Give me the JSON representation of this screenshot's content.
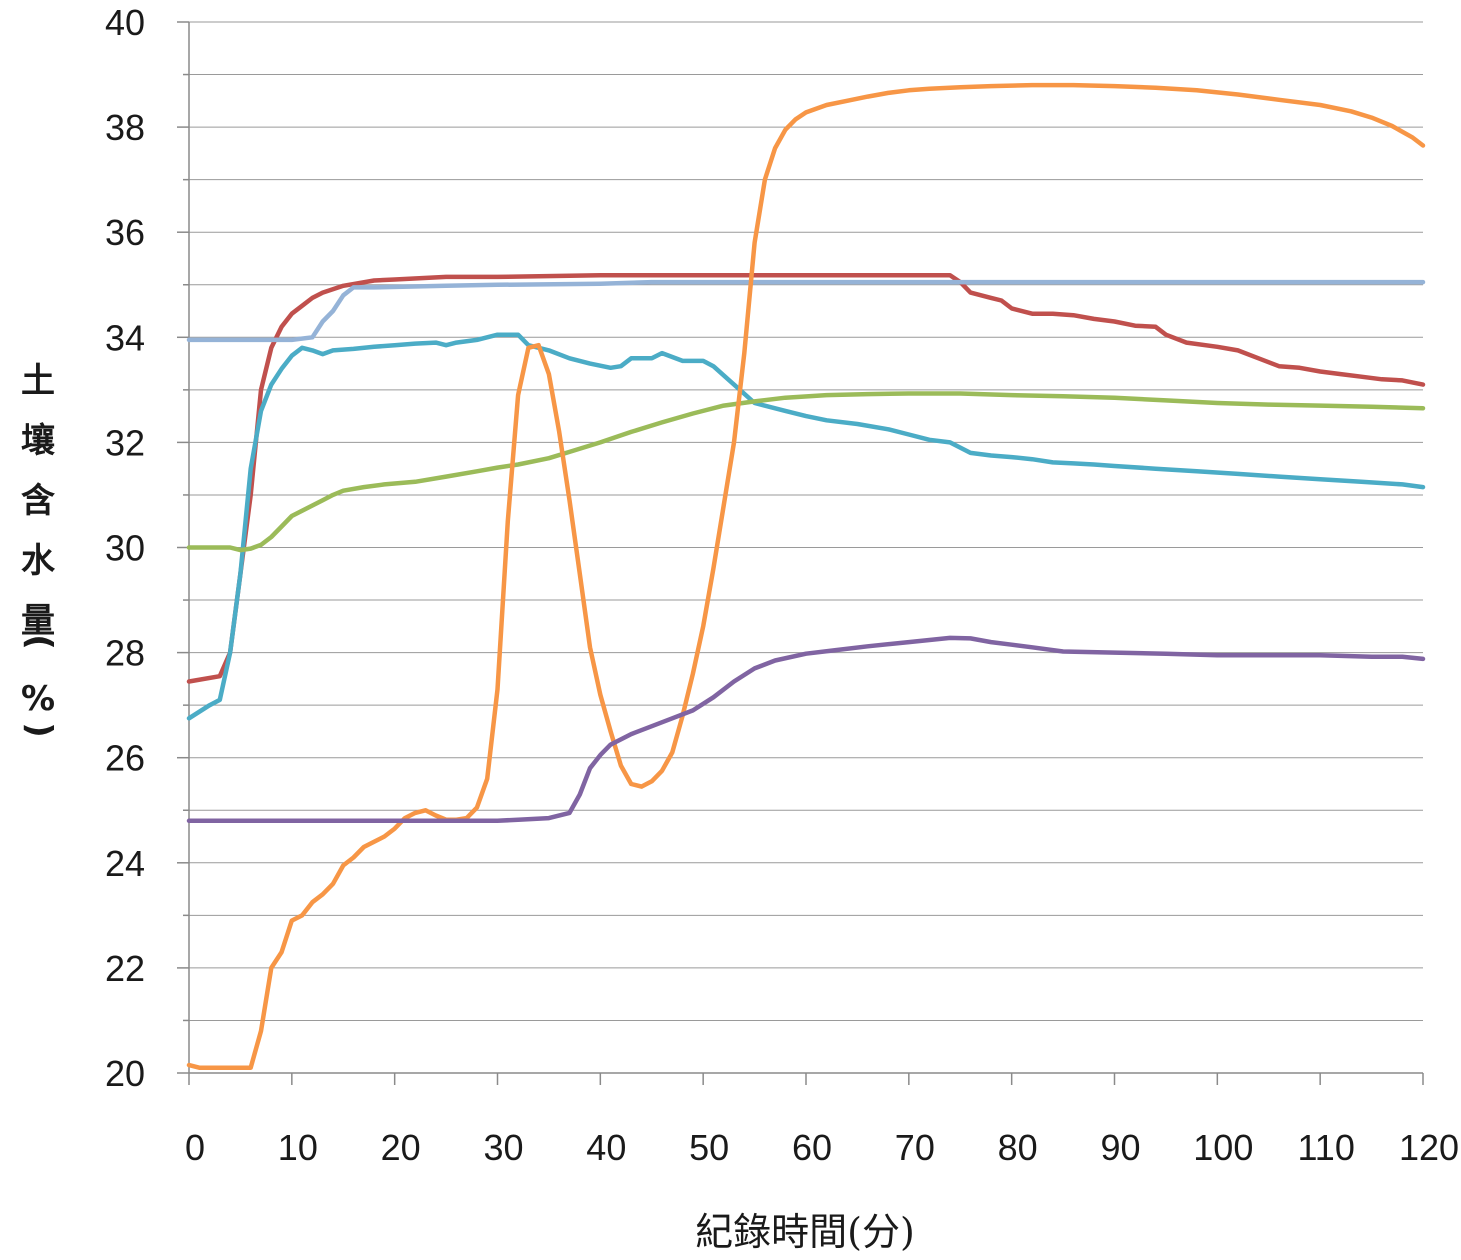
{
  "chart_data": {
    "type": "line",
    "title": "",
    "xlabel": "紀錄時間(分)",
    "ylabel": "土壤含水量(%)",
    "xlim": [
      0,
      120
    ],
    "ylim": [
      20,
      40
    ],
    "xticks": [
      0,
      10,
      20,
      30,
      40,
      50,
      60,
      70,
      80,
      90,
      100,
      110,
      120
    ],
    "yticks": [
      20,
      22,
      24,
      26,
      28,
      30,
      32,
      34,
      36,
      38,
      40
    ],
    "grid": true,
    "series": [
      {
        "color": "#c0504d",
        "points": [
          [
            0,
            27.45
          ],
          [
            3,
            27.55
          ],
          [
            4,
            28.0
          ],
          [
            5,
            29.5
          ],
          [
            6,
            31.0
          ],
          [
            7,
            33.0
          ],
          [
            8,
            33.8
          ],
          [
            9,
            34.2
          ],
          [
            10,
            34.45
          ],
          [
            11,
            34.6
          ],
          [
            12,
            34.75
          ],
          [
            13,
            34.85
          ],
          [
            15,
            34.98
          ],
          [
            18,
            35.08
          ],
          [
            20,
            35.1
          ],
          [
            25,
            35.15
          ],
          [
            30,
            35.15
          ],
          [
            40,
            35.18
          ],
          [
            50,
            35.18
          ],
          [
            60,
            35.18
          ],
          [
            70,
            35.18
          ],
          [
            74,
            35.18
          ],
          [
            75,
            35.05
          ],
          [
            76,
            34.85
          ],
          [
            78,
            34.75
          ],
          [
            79,
            34.7
          ],
          [
            80,
            34.55
          ],
          [
            82,
            34.45
          ],
          [
            84,
            34.45
          ],
          [
            86,
            34.42
          ],
          [
            88,
            34.35
          ],
          [
            90,
            34.3
          ],
          [
            92,
            34.22
          ],
          [
            94,
            34.2
          ],
          [
            95,
            34.05
          ],
          [
            97,
            33.9
          ],
          [
            100,
            33.82
          ],
          [
            102,
            33.75
          ],
          [
            104,
            33.6
          ],
          [
            106,
            33.45
          ],
          [
            108,
            33.42
          ],
          [
            110,
            33.35
          ],
          [
            112,
            33.3
          ],
          [
            114,
            33.25
          ],
          [
            116,
            33.2
          ],
          [
            118,
            33.18
          ],
          [
            120,
            33.1
          ]
        ]
      },
      {
        "color": "#95b3d7",
        "points": [
          [
            0,
            33.95
          ],
          [
            10,
            33.95
          ],
          [
            12,
            34.0
          ],
          [
            13,
            34.3
          ],
          [
            14,
            34.5
          ],
          [
            15,
            34.8
          ],
          [
            16,
            34.95
          ],
          [
            18,
            34.95
          ],
          [
            25,
            34.98
          ],
          [
            30,
            35.0
          ],
          [
            40,
            35.02
          ],
          [
            45,
            35.05
          ],
          [
            50,
            35.05
          ],
          [
            60,
            35.05
          ],
          [
            80,
            35.05
          ],
          [
            100,
            35.05
          ],
          [
            120,
            35.05
          ]
        ]
      },
      {
        "color": "#4bacc6",
        "points": [
          [
            0,
            26.75
          ],
          [
            2,
            27.0
          ],
          [
            3,
            27.1
          ],
          [
            4,
            28.0
          ],
          [
            5,
            29.5
          ],
          [
            6,
            31.5
          ],
          [
            7,
            32.6
          ],
          [
            8,
            33.1
          ],
          [
            9,
            33.4
          ],
          [
            10,
            33.65
          ],
          [
            11,
            33.8
          ],
          [
            12,
            33.75
          ],
          [
            13,
            33.68
          ],
          [
            14,
            33.75
          ],
          [
            16,
            33.78
          ],
          [
            18,
            33.82
          ],
          [
            20,
            33.85
          ],
          [
            22,
            33.88
          ],
          [
            24,
            33.9
          ],
          [
            25,
            33.85
          ],
          [
            26,
            33.9
          ],
          [
            28,
            33.95
          ],
          [
            30,
            34.05
          ],
          [
            32,
            34.05
          ],
          [
            33,
            33.85
          ],
          [
            35,
            33.75
          ],
          [
            37,
            33.6
          ],
          [
            39,
            33.5
          ],
          [
            41,
            33.42
          ],
          [
            42,
            33.45
          ],
          [
            43,
            33.6
          ],
          [
            45,
            33.6
          ],
          [
            46,
            33.7
          ],
          [
            48,
            33.55
          ],
          [
            50,
            33.55
          ],
          [
            51,
            33.45
          ],
          [
            53,
            33.1
          ],
          [
            55,
            32.75
          ],
          [
            58,
            32.6
          ],
          [
            60,
            32.5
          ],
          [
            62,
            32.42
          ],
          [
            65,
            32.35
          ],
          [
            68,
            32.25
          ],
          [
            70,
            32.15
          ],
          [
            72,
            32.05
          ],
          [
            74,
            32.0
          ],
          [
            76,
            31.8
          ],
          [
            78,
            31.75
          ],
          [
            80,
            31.72
          ],
          [
            82,
            31.68
          ],
          [
            84,
            31.62
          ],
          [
            86,
            31.6
          ],
          [
            88,
            31.58
          ],
          [
            90,
            31.55
          ],
          [
            94,
            31.5
          ],
          [
            98,
            31.45
          ],
          [
            102,
            31.4
          ],
          [
            106,
            31.35
          ],
          [
            110,
            31.3
          ],
          [
            114,
            31.25
          ],
          [
            118,
            31.2
          ],
          [
            120,
            31.15
          ]
        ]
      },
      {
        "color": "#9bbb59",
        "points": [
          [
            0,
            30.0
          ],
          [
            4,
            30.0
          ],
          [
            5,
            29.95
          ],
          [
            6,
            29.98
          ],
          [
            7,
            30.05
          ],
          [
            8,
            30.2
          ],
          [
            9,
            30.4
          ],
          [
            10,
            30.6
          ],
          [
            11,
            30.7
          ],
          [
            12,
            30.8
          ],
          [
            13,
            30.9
          ],
          [
            14,
            31.0
          ],
          [
            15,
            31.08
          ],
          [
            17,
            31.15
          ],
          [
            19,
            31.2
          ],
          [
            22,
            31.25
          ],
          [
            25,
            31.35
          ],
          [
            28,
            31.45
          ],
          [
            30,
            31.52
          ],
          [
            32,
            31.58
          ],
          [
            35,
            31.7
          ],
          [
            37,
            31.82
          ],
          [
            40,
            32.0
          ],
          [
            43,
            32.2
          ],
          [
            46,
            32.38
          ],
          [
            49,
            32.55
          ],
          [
            52,
            32.7
          ],
          [
            55,
            32.78
          ],
          [
            58,
            32.85
          ],
          [
            62,
            32.9
          ],
          [
            66,
            32.92
          ],
          [
            70,
            32.93
          ],
          [
            75,
            32.93
          ],
          [
            80,
            32.9
          ],
          [
            85,
            32.88
          ],
          [
            90,
            32.85
          ],
          [
            95,
            32.8
          ],
          [
            100,
            32.75
          ],
          [
            105,
            32.72
          ],
          [
            110,
            32.7
          ],
          [
            115,
            32.68
          ],
          [
            120,
            32.65
          ]
        ]
      },
      {
        "color": "#f79646",
        "points": [
          [
            0,
            20.15
          ],
          [
            1,
            20.1
          ],
          [
            6,
            20.1
          ],
          [
            7,
            20.8
          ],
          [
            8,
            22.0
          ],
          [
            9,
            22.3
          ],
          [
            10,
            22.9
          ],
          [
            11,
            23.0
          ],
          [
            12,
            23.25
          ],
          [
            13,
            23.4
          ],
          [
            14,
            23.6
          ],
          [
            15,
            23.95
          ],
          [
            16,
            24.1
          ],
          [
            17,
            24.3
          ],
          [
            18,
            24.4
          ],
          [
            19,
            24.5
          ],
          [
            20,
            24.65
          ],
          [
            21,
            24.85
          ],
          [
            22,
            24.95
          ],
          [
            23,
            25.0
          ],
          [
            24,
            24.9
          ],
          [
            25,
            24.82
          ],
          [
            26,
            24.82
          ],
          [
            27,
            24.85
          ],
          [
            28,
            25.05
          ],
          [
            29,
            25.6
          ],
          [
            30,
            27.3
          ],
          [
            31,
            30.5
          ],
          [
            32,
            32.9
          ],
          [
            33,
            33.8
          ],
          [
            34,
            33.85
          ],
          [
            35,
            33.3
          ],
          [
            36,
            32.2
          ],
          [
            37,
            30.9
          ],
          [
            38,
            29.5
          ],
          [
            39,
            28.1
          ],
          [
            40,
            27.2
          ],
          [
            41,
            26.5
          ],
          [
            42,
            25.85
          ],
          [
            43,
            25.5
          ],
          [
            44,
            25.45
          ],
          [
            45,
            25.55
          ],
          [
            46,
            25.75
          ],
          [
            47,
            26.1
          ],
          [
            48,
            26.8
          ],
          [
            49,
            27.6
          ],
          [
            50,
            28.5
          ],
          [
            51,
            29.6
          ],
          [
            52,
            30.8
          ],
          [
            53,
            32.0
          ],
          [
            54,
            33.7
          ],
          [
            55,
            35.8
          ],
          [
            56,
            37.0
          ],
          [
            57,
            37.6
          ],
          [
            58,
            37.95
          ],
          [
            59,
            38.15
          ],
          [
            60,
            38.28
          ],
          [
            62,
            38.42
          ],
          [
            64,
            38.5
          ],
          [
            66,
            38.58
          ],
          [
            68,
            38.65
          ],
          [
            70,
            38.7
          ],
          [
            72,
            38.73
          ],
          [
            75,
            38.76
          ],
          [
            78,
            38.78
          ],
          [
            82,
            38.8
          ],
          [
            86,
            38.8
          ],
          [
            90,
            38.78
          ],
          [
            94,
            38.75
          ],
          [
            98,
            38.7
          ],
          [
            102,
            38.62
          ],
          [
            106,
            38.52
          ],
          [
            110,
            38.42
          ],
          [
            113,
            38.3
          ],
          [
            115,
            38.18
          ],
          [
            117,
            38.02
          ],
          [
            119,
            37.8
          ],
          [
            120,
            37.65
          ]
        ]
      },
      {
        "color": "#8064a2",
        "points": [
          [
            0,
            24.8
          ],
          [
            30,
            24.8
          ],
          [
            32,
            24.82
          ],
          [
            35,
            24.85
          ],
          [
            37,
            24.95
          ],
          [
            38,
            25.3
          ],
          [
            39,
            25.8
          ],
          [
            40,
            26.05
          ],
          [
            41,
            26.25
          ],
          [
            43,
            26.45
          ],
          [
            45,
            26.6
          ],
          [
            47,
            26.75
          ],
          [
            49,
            26.9
          ],
          [
            51,
            27.15
          ],
          [
            53,
            27.45
          ],
          [
            55,
            27.7
          ],
          [
            57,
            27.85
          ],
          [
            60,
            27.98
          ],
          [
            63,
            28.05
          ],
          [
            66,
            28.12
          ],
          [
            70,
            28.2
          ],
          [
            74,
            28.28
          ],
          [
            76,
            28.27
          ],
          [
            78,
            28.2
          ],
          [
            80,
            28.15
          ],
          [
            82,
            28.1
          ],
          [
            85,
            28.02
          ],
          [
            90,
            28.0
          ],
          [
            95,
            27.98
          ],
          [
            100,
            27.95
          ],
          [
            110,
            27.95
          ],
          [
            115,
            27.92
          ],
          [
            118,
            27.92
          ],
          [
            120,
            27.88
          ]
        ]
      }
    ]
  }
}
